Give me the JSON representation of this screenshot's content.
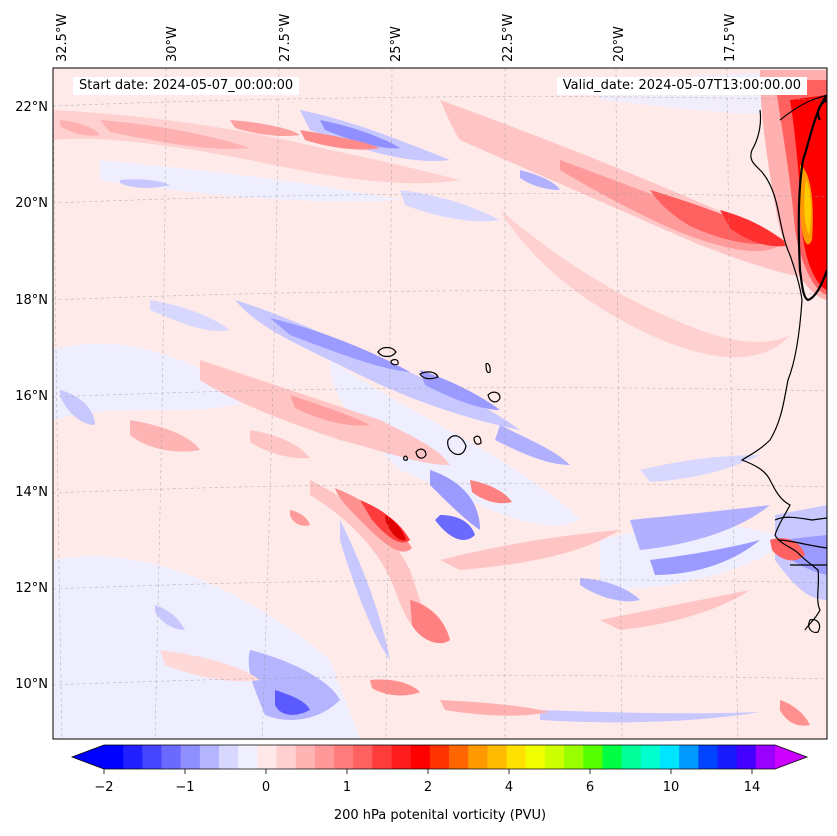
{
  "map": {
    "start_date": "Start date: 2024-05-07_00:00:00",
    "valid_date": "Valid_date: 2024-05-07T13:00:00.00",
    "lon_labels": [
      "32.5°W",
      "30°W",
      "27.5°W",
      "25°W",
      "22.5°W",
      "20°W",
      "17.5°W"
    ],
    "lat_labels": [
      "22°N",
      "20°N",
      "18°N",
      "16°N",
      "14°N",
      "12°N",
      "10°N"
    ],
    "region": "Cape Verde Islands and West African coast",
    "variable": "200 hPa potential vorticity"
  },
  "colorbar": {
    "title": "200 hPa potenital vorticity (PVU)",
    "tick_labels": [
      "−2",
      "−1",
      "0",
      "1",
      "2",
      "4",
      "6",
      "10",
      "14"
    ],
    "colors": [
      "#0000ff",
      "#2020ff",
      "#4545ff",
      "#6a6aff",
      "#8f8fff",
      "#b4b4ff",
      "#d8d8ff",
      "#f0f0ff",
      "#ffe8e8",
      "#ffd0d0",
      "#ffb4b4",
      "#ff9898",
      "#ff7c7c",
      "#ff6060",
      "#ff3c3c",
      "#ff1c1c",
      "#ff0000",
      "#ff3300",
      "#ff6600",
      "#ff9900",
      "#ffbb00",
      "#ffe100",
      "#f0ff00",
      "#ccff00",
      "#99ff00",
      "#55ff00",
      "#00ff44",
      "#00ff99",
      "#00ffcc",
      "#00e5ff",
      "#0099ff",
      "#0044ff",
      "#1a1aff",
      "#4400ff",
      "#9900ff"
    ],
    "extend_colors": {
      "min": "#0000ff",
      "max": "#cc00ff"
    }
  }
}
